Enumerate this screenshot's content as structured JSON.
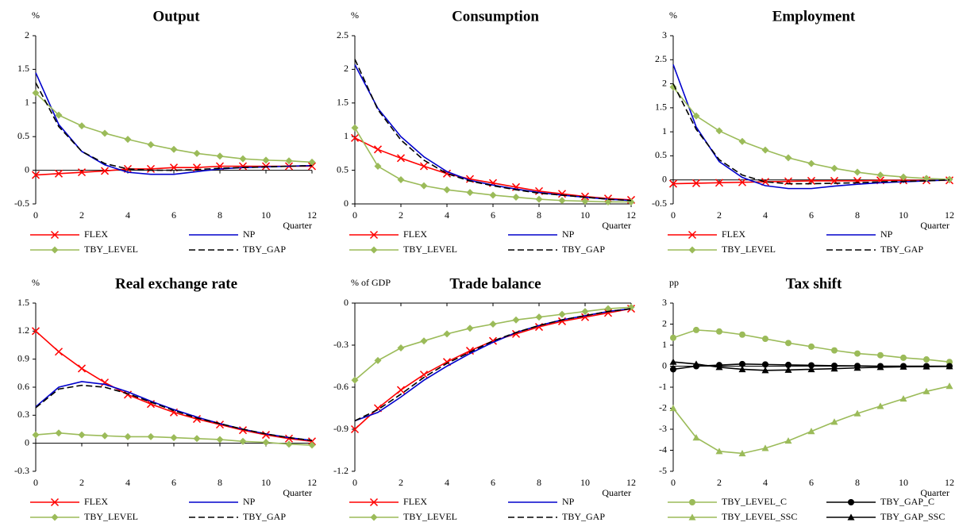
{
  "chart_data": [
    {
      "type": "line",
      "title": "Output",
      "unit": "%",
      "xlabel": "Quarter",
      "x": [
        0,
        1,
        2,
        3,
        4,
        5,
        6,
        7,
        8,
        9,
        10,
        11,
        12
      ],
      "xlim": [
        0,
        12
      ],
      "xticks": [
        0,
        2,
        4,
        6,
        8,
        10,
        12
      ],
      "ylim": [
        -0.5,
        2
      ],
      "yticks": [
        -0.5,
        0,
        0.5,
        1,
        1.5,
        2
      ],
      "series": [
        {
          "name": "FLEX",
          "color": "#ff0000",
          "marker": "x",
          "dash": false,
          "values": [
            -0.07,
            -0.05,
            -0.03,
            -0.01,
            0.02,
            0.02,
            0.04,
            0.04,
            0.06,
            0.06,
            0.06,
            0.06,
            0.06
          ]
        },
        {
          "name": "NP",
          "color": "#0000cc",
          "marker": "none",
          "dash": false,
          "values": [
            1.45,
            0.68,
            0.28,
            0.08,
            -0.03,
            -0.06,
            -0.06,
            -0.02,
            0.02,
            0.04,
            0.05,
            0.06,
            0.07
          ]
        },
        {
          "name": "TBY_LEVEL",
          "color": "#9bbb59",
          "marker": "diamond",
          "dash": false,
          "values": [
            1.15,
            0.82,
            0.66,
            0.55,
            0.46,
            0.38,
            0.31,
            0.25,
            0.21,
            0.17,
            0.15,
            0.14,
            0.12
          ]
        },
        {
          "name": "TBY_GAP",
          "color": "#000000",
          "marker": "none",
          "dash": true,
          "values": [
            1.3,
            0.65,
            0.28,
            0.1,
            0.02,
            0.0,
            0.0,
            0.01,
            0.03,
            0.04,
            0.05,
            0.06,
            0.07
          ]
        }
      ]
    },
    {
      "type": "line",
      "title": "Consumption",
      "unit": "%",
      "xlabel": "Quarter",
      "x": [
        0,
        1,
        2,
        3,
        4,
        5,
        6,
        7,
        8,
        9,
        10,
        11,
        12
      ],
      "xlim": [
        0,
        12
      ],
      "xticks": [
        0,
        2,
        4,
        6,
        8,
        10,
        12
      ],
      "ylim": [
        0,
        2.5
      ],
      "yticks": [
        0,
        0.5,
        1,
        1.5,
        2,
        2.5
      ],
      "series": [
        {
          "name": "FLEX",
          "color": "#ff0000",
          "marker": "x",
          "dash": false,
          "values": [
            0.98,
            0.81,
            0.68,
            0.56,
            0.45,
            0.37,
            0.31,
            0.25,
            0.19,
            0.15,
            0.11,
            0.08,
            0.06
          ]
        },
        {
          "name": "NP",
          "color": "#0000cc",
          "marker": "none",
          "dash": false,
          "values": [
            2.07,
            1.42,
            1.0,
            0.7,
            0.48,
            0.35,
            0.28,
            0.22,
            0.17,
            0.13,
            0.1,
            0.07,
            0.05
          ]
        },
        {
          "name": "TBY_LEVEL",
          "color": "#9bbb59",
          "marker": "diamond",
          "dash": false,
          "values": [
            1.13,
            0.56,
            0.36,
            0.27,
            0.21,
            0.17,
            0.13,
            0.1,
            0.07,
            0.05,
            0.04,
            0.03,
            0.03
          ]
        },
        {
          "name": "TBY_GAP",
          "color": "#000000",
          "marker": "none",
          "dash": true,
          "values": [
            2.15,
            1.4,
            0.95,
            0.65,
            0.45,
            0.34,
            0.27,
            0.21,
            0.16,
            0.13,
            0.1,
            0.07,
            0.05
          ]
        }
      ]
    },
    {
      "type": "line",
      "title": "Employment",
      "unit": "%",
      "xlabel": "Quarter",
      "x": [
        0,
        1,
        2,
        3,
        4,
        5,
        6,
        7,
        8,
        9,
        10,
        11,
        12
      ],
      "xlim": [
        0,
        12
      ],
      "xticks": [
        0,
        2,
        4,
        6,
        8,
        10,
        12
      ],
      "ylim": [
        -0.5,
        3
      ],
      "yticks": [
        -0.5,
        0,
        0.5,
        1,
        1.5,
        2,
        2.5,
        3
      ],
      "series": [
        {
          "name": "FLEX",
          "color": "#ff0000",
          "marker": "x",
          "dash": false,
          "values": [
            -0.08,
            -0.07,
            -0.06,
            -0.05,
            -0.04,
            -0.03,
            -0.02,
            -0.02,
            -0.02,
            -0.01,
            -0.01,
            -0.01,
            -0.01
          ]
        },
        {
          "name": "NP",
          "color": "#0000cc",
          "marker": "none",
          "dash": false,
          "values": [
            2.4,
            1.1,
            0.38,
            0.05,
            -0.12,
            -0.18,
            -0.18,
            -0.13,
            -0.09,
            -0.06,
            -0.04,
            -0.02,
            0.0
          ]
        },
        {
          "name": "TBY_LEVEL",
          "color": "#9bbb59",
          "marker": "diamond",
          "dash": false,
          "values": [
            1.93,
            1.33,
            1.02,
            0.8,
            0.62,
            0.46,
            0.34,
            0.24,
            0.16,
            0.1,
            0.06,
            0.03,
            0.01
          ]
        },
        {
          "name": "TBY_GAP",
          "color": "#000000",
          "marker": "none",
          "dash": true,
          "values": [
            2.0,
            1.05,
            0.42,
            0.1,
            -0.04,
            -0.08,
            -0.08,
            -0.07,
            -0.06,
            -0.04,
            -0.03,
            -0.02,
            0.0
          ]
        }
      ]
    },
    {
      "type": "line",
      "title": "Real exchange rate",
      "unit": "%",
      "xlabel": "Quarter",
      "x": [
        0,
        1,
        2,
        3,
        4,
        5,
        6,
        7,
        8,
        9,
        10,
        11,
        12
      ],
      "xlim": [
        0,
        12
      ],
      "xticks": [
        0,
        2,
        4,
        6,
        8,
        10,
        12
      ],
      "ylim": [
        -0.3,
        1.5
      ],
      "yticks": [
        -0.3,
        0,
        0.3,
        0.6,
        0.9,
        1.2,
        1.5
      ],
      "series": [
        {
          "name": "FLEX",
          "color": "#ff0000",
          "marker": "x",
          "dash": false,
          "values": [
            1.2,
            0.98,
            0.8,
            0.65,
            0.52,
            0.42,
            0.33,
            0.26,
            0.2,
            0.14,
            0.09,
            0.05,
            0.02
          ]
        },
        {
          "name": "NP",
          "color": "#0000cc",
          "marker": "none",
          "dash": false,
          "values": [
            0.39,
            0.6,
            0.66,
            0.63,
            0.55,
            0.45,
            0.36,
            0.28,
            0.21,
            0.15,
            0.1,
            0.06,
            0.03
          ]
        },
        {
          "name": "TBY_LEVEL",
          "color": "#9bbb59",
          "marker": "diamond",
          "dash": false,
          "values": [
            0.09,
            0.11,
            0.09,
            0.08,
            0.07,
            0.07,
            0.06,
            0.05,
            0.04,
            0.02,
            0.01,
            -0.01,
            -0.02
          ]
        },
        {
          "name": "TBY_GAP",
          "color": "#000000",
          "marker": "none",
          "dash": true,
          "values": [
            0.38,
            0.58,
            0.62,
            0.6,
            0.53,
            0.44,
            0.35,
            0.27,
            0.21,
            0.15,
            0.1,
            0.06,
            0.03
          ]
        }
      ]
    },
    {
      "type": "line",
      "title": "Trade balance",
      "unit": "% of GDP",
      "xlabel": "Quarter",
      "x": [
        0,
        1,
        2,
        3,
        4,
        5,
        6,
        7,
        8,
        9,
        10,
        11,
        12
      ],
      "xlim": [
        0,
        12
      ],
      "xticks": [
        0,
        2,
        4,
        6,
        8,
        10,
        12
      ],
      "ylim": [
        -1.2,
        0
      ],
      "yticks": [
        -1.2,
        -0.9,
        -0.6,
        -0.3,
        0
      ],
      "series": [
        {
          "name": "FLEX",
          "color": "#ff0000",
          "marker": "x",
          "dash": false,
          "values": [
            -0.9,
            -0.75,
            -0.62,
            -0.51,
            -0.42,
            -0.34,
            -0.27,
            -0.22,
            -0.17,
            -0.13,
            -0.1,
            -0.07,
            -0.04
          ]
        },
        {
          "name": "NP",
          "color": "#0000cc",
          "marker": "none",
          "dash": false,
          "values": [
            -0.84,
            -0.78,
            -0.67,
            -0.55,
            -0.45,
            -0.36,
            -0.28,
            -0.21,
            -0.16,
            -0.12,
            -0.09,
            -0.06,
            -0.04
          ]
        },
        {
          "name": "TBY_LEVEL",
          "color": "#9bbb59",
          "marker": "diamond",
          "dash": false,
          "values": [
            -0.55,
            -0.41,
            -0.32,
            -0.27,
            -0.22,
            -0.18,
            -0.15,
            -0.12,
            -0.1,
            -0.08,
            -0.06,
            -0.04,
            -0.03
          ]
        },
        {
          "name": "TBY_GAP",
          "color": "#000000",
          "marker": "none",
          "dash": true,
          "values": [
            -0.84,
            -0.76,
            -0.65,
            -0.53,
            -0.43,
            -0.35,
            -0.27,
            -0.21,
            -0.16,
            -0.12,
            -0.09,
            -0.06,
            -0.04
          ]
        }
      ]
    },
    {
      "type": "line",
      "title": "Tax shift",
      "unit": "pp",
      "xlabel": "Quarter",
      "x": [
        0,
        1,
        2,
        3,
        4,
        5,
        6,
        7,
        8,
        9,
        10,
        11,
        12
      ],
      "xlim": [
        0,
        12
      ],
      "xticks": [
        0,
        2,
        4,
        6,
        8,
        10,
        12
      ],
      "ylim": [
        -5,
        3
      ],
      "yticks": [
        -5,
        -4,
        -3,
        -2,
        -1,
        0,
        1,
        2,
        3
      ],
      "series": [
        {
          "name": "TBY_LEVEL_C",
          "color": "#9bbb59",
          "marker": "circle",
          "dash": false,
          "values": [
            1.35,
            1.72,
            1.65,
            1.5,
            1.3,
            1.1,
            0.93,
            0.75,
            0.6,
            0.52,
            0.4,
            0.32,
            0.2
          ]
        },
        {
          "name": "TBY_GAP_C",
          "color": "#000000",
          "marker": "circle",
          "dash": false,
          "values": [
            -0.15,
            0.0,
            0.05,
            0.1,
            0.08,
            0.06,
            0.04,
            0.02,
            0.01,
            0.0,
            0.0,
            0.0,
            0.0
          ]
        },
        {
          "name": "TBY_LEVEL_SSC",
          "color": "#9bbb59",
          "marker": "triangle",
          "dash": false,
          "values": [
            -2.0,
            -3.4,
            -4.05,
            -4.15,
            -3.9,
            -3.55,
            -3.1,
            -2.65,
            -2.25,
            -1.9,
            -1.55,
            -1.2,
            -0.95
          ]
        },
        {
          "name": "TBY_GAP_SSC",
          "color": "#000000",
          "marker": "triangle",
          "dash": false,
          "values": [
            0.2,
            0.1,
            -0.05,
            -0.15,
            -0.2,
            -0.18,
            -0.15,
            -0.12,
            -0.08,
            -0.05,
            -0.03,
            -0.02,
            -0.01
          ]
        }
      ]
    }
  ]
}
